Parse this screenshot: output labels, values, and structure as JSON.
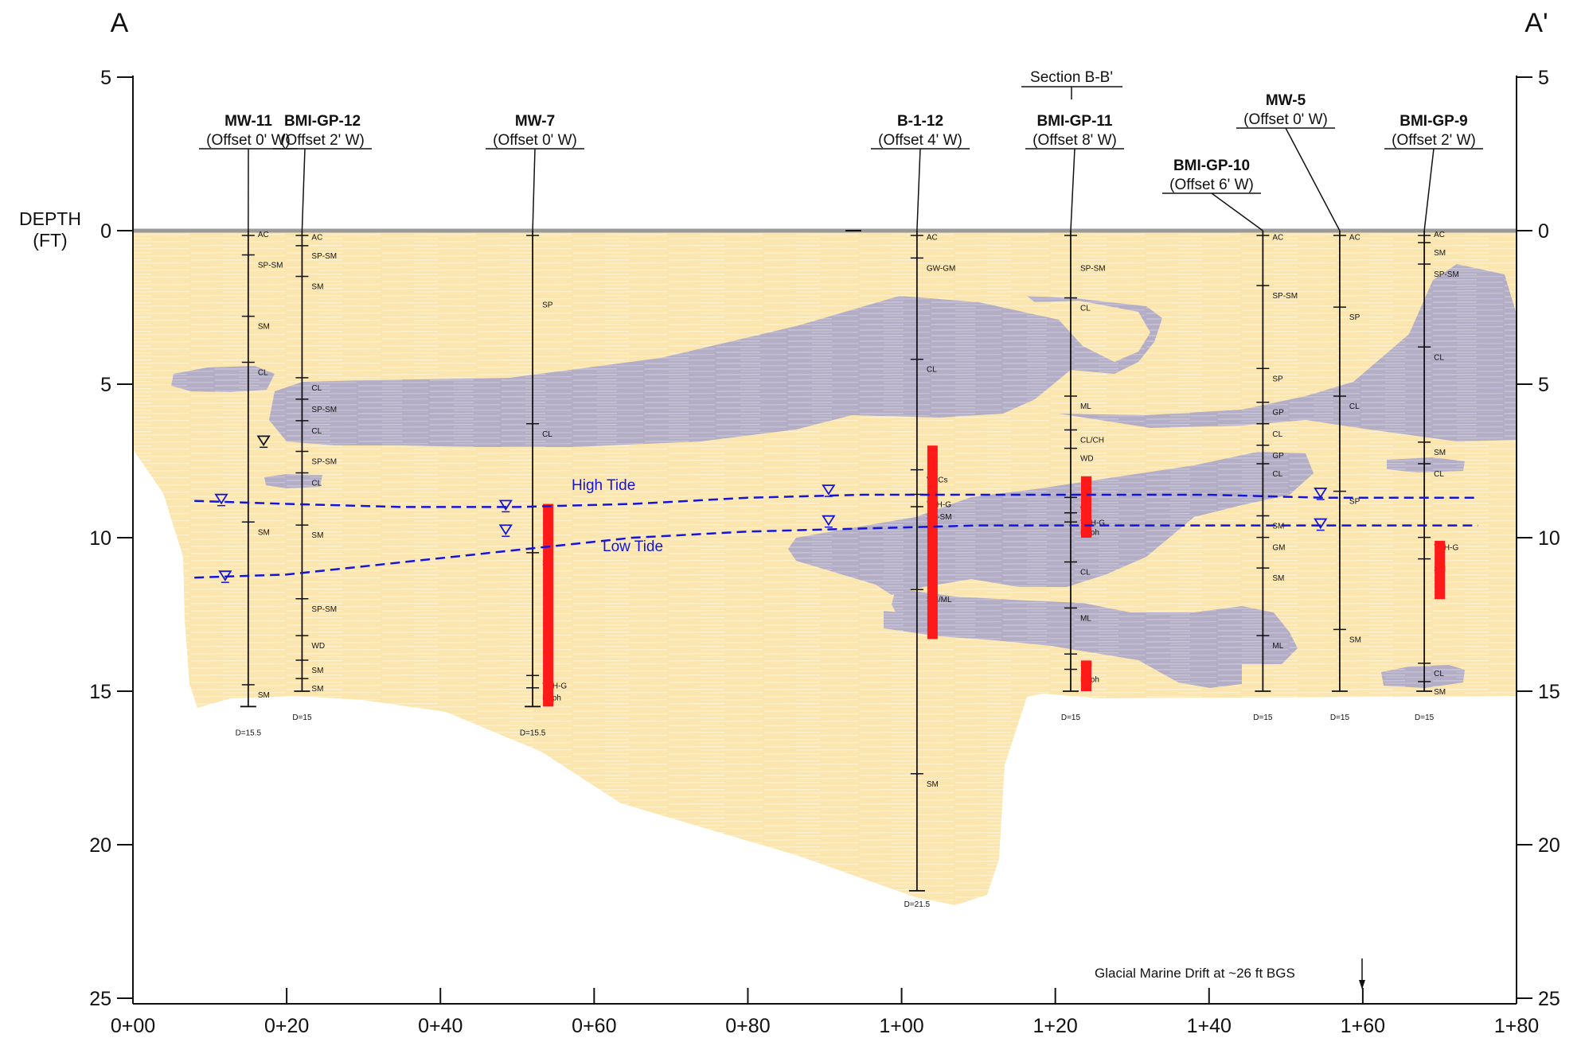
{
  "section": {
    "start_label": "A",
    "end_label": "A'",
    "depth_label_line1": "DEPTH",
    "depth_label_line2": "(FT)",
    "section_ref": "Section B-B'",
    "note": "Glacial Marine Drift at ~26 ft BGS",
    "colors": {
      "sand": "#fbe6b0",
      "clay": "#b3aec6",
      "contaminant": "#ff1a1a",
      "water_table": "#1515d8",
      "ground_surface": "#9a9a9a"
    }
  },
  "axes": {
    "depth_ticks": [
      "5",
      "0",
      "5",
      "10",
      "15",
      "20",
      "25"
    ],
    "depth_values": [
      -5,
      0,
      5,
      10,
      15,
      20,
      25
    ],
    "station_ticks": [
      "0+00",
      "0+20",
      "0+40",
      "0+60",
      "0+80",
      "1+00",
      "1+20",
      "1+40",
      "1+60",
      "1+80"
    ],
    "station_values": [
      0,
      20,
      40,
      60,
      80,
      100,
      120,
      140,
      160,
      180
    ]
  },
  "tides": {
    "high_label": "High Tide",
    "low_label": "Low Tide",
    "high_depth_ft": [
      8.8,
      8.9,
      9.0,
      9.0,
      8.9,
      8.7,
      8.6,
      8.6,
      8.6,
      8.6,
      8.7,
      8.7,
      8.7
    ],
    "low_depth_ft": [
      11.3,
      11.2,
      10.8,
      10.4,
      10.0,
      9.8,
      9.7,
      9.6,
      9.6,
      9.6,
      9.6,
      9.6,
      9.6
    ]
  },
  "borings": [
    {
      "name": "MW-11",
      "offset": "(Offset 0' W)",
      "station": 15,
      "total_depth": "D=15.5",
      "depth_ft": 15.5,
      "soils": [
        {
          "label": "AC",
          "depth": 0.1
        },
        {
          "label": "SP-SM",
          "depth": 1.1
        },
        {
          "label": "SM",
          "depth": 3.1
        },
        {
          "label": "CL",
          "depth": 4.6
        },
        {
          "label": "SM",
          "depth": 9.8
        },
        {
          "label": "SM",
          "depth": 15.1
        }
      ]
    },
    {
      "name": "BMI-GP-12",
      "offset": "(Offset 2' W)",
      "station": 22,
      "total_depth": "D=15",
      "depth_ft": 15,
      "soils": [
        {
          "label": "AC",
          "depth": 0.2
        },
        {
          "label": "SP-SM",
          "depth": 0.8
        },
        {
          "label": "SM",
          "depth": 1.8
        },
        {
          "label": "CL",
          "depth": 5.1
        },
        {
          "label": "SP-SM",
          "depth": 5.8
        },
        {
          "label": "CL",
          "depth": 6.5
        },
        {
          "label": "SP-SM",
          "depth": 7.5
        },
        {
          "label": "CL",
          "depth": 8.2
        },
        {
          "label": "SM",
          "depth": 9.9
        },
        {
          "label": "SP-SM",
          "depth": 12.3
        },
        {
          "label": "WD",
          "depth": 13.5
        },
        {
          "label": "SM",
          "depth": 14.3
        },
        {
          "label": "SM",
          "depth": 14.9
        }
      ]
    },
    {
      "name": "MW-7",
      "offset": "(Offset 0' W)",
      "station": 52,
      "total_depth": "D=15.5",
      "depth_ft": 15.5,
      "soils": [
        {
          "label": "SP",
          "depth": 2.4
        },
        {
          "label": "CL",
          "depth": 6.6
        },
        {
          "label": "SP",
          "depth": 10.8
        },
        {
          "label": "TPH-G",
          "depth": 14.8
        },
        {
          "label": "Naph",
          "depth": 15.2
        }
      ]
    },
    {
      "name": "B-1-12",
      "offset": "(Offset 4' W)",
      "station": 102,
      "total_depth": "D=21.5",
      "depth_ft": 21.5,
      "soils": [
        {
          "label": "AC",
          "depth": 0.2
        },
        {
          "label": "GW-GM",
          "depth": 1.2
        },
        {
          "label": "CL",
          "depth": 4.5
        },
        {
          "label": "VOCs",
          "depth": 8.1
        },
        {
          "label": "TPH-G",
          "depth": 8.9
        },
        {
          "label": "SP-SM",
          "depth": 9.3
        },
        {
          "label": "SM/ML",
          "depth": 12.0
        },
        {
          "label": "SM",
          "depth": 18.0
        }
      ]
    },
    {
      "name": "BMI-GP-11",
      "offset": "(Offset 8' W)",
      "station": 122,
      "total_depth": "D=15",
      "depth_ft": 15,
      "soils": [
        {
          "label": "SP-SM",
          "depth": 1.2
        },
        {
          "label": "CL",
          "depth": 2.5
        },
        {
          "label": "ML",
          "depth": 5.7
        },
        {
          "label": "CL/CH",
          "depth": 6.8
        },
        {
          "label": "WD",
          "depth": 7.4
        },
        {
          "label": "CL",
          "depth": 9.0
        },
        {
          "label": "TPH-G",
          "depth": 9.5
        },
        {
          "label": "Naph",
          "depth": 9.8
        },
        {
          "label": "CL",
          "depth": 11.1
        },
        {
          "label": "ML",
          "depth": 12.6
        },
        {
          "label": "SM",
          "depth": 14.1
        },
        {
          "label": "Naph",
          "depth": 14.6
        }
      ]
    },
    {
      "name": "BMI-GP-10",
      "offset": "(Offset 6' W)",
      "station": 147,
      "total_depth": "D=15",
      "depth_ft": 15,
      "soils": [
        {
          "label": "AC",
          "depth": 0.2
        },
        {
          "label": "SP-SM",
          "depth": 2.1
        },
        {
          "label": "SP",
          "depth": 4.8
        },
        {
          "label": "GP",
          "depth": 5.9
        },
        {
          "label": "CL",
          "depth": 6.6
        },
        {
          "label": "GP",
          "depth": 7.3
        },
        {
          "label": "CL",
          "depth": 7.9
        },
        {
          "label": "SM",
          "depth": 9.6
        },
        {
          "label": "GM",
          "depth": 10.3
        },
        {
          "label": "SM",
          "depth": 11.3
        },
        {
          "label": "ML",
          "depth": 13.5
        }
      ]
    },
    {
      "name": "MW-5",
      "offset": "(Offset 0' W)",
      "station": 157,
      "total_depth": "D=15",
      "depth_ft": 15,
      "soils": [
        {
          "label": "AC",
          "depth": 0.2
        },
        {
          "label": "SP",
          "depth": 2.8
        },
        {
          "label": "CL",
          "depth": 5.7
        },
        {
          "label": "SP",
          "depth": 8.8
        },
        {
          "label": "SM",
          "depth": 13.3
        }
      ]
    },
    {
      "name": "BMI-GP-9",
      "offset": "(Offset 2' W)",
      "station": 168,
      "total_depth": "D=15",
      "depth_ft": 15,
      "soils": [
        {
          "label": "AC",
          "depth": 0.1
        },
        {
          "label": "SM",
          "depth": 0.7
        },
        {
          "label": "SP-SM",
          "depth": 1.4
        },
        {
          "label": "CL",
          "depth": 4.1
        },
        {
          "label": "SM",
          "depth": 7.2
        },
        {
          "label": "CL",
          "depth": 7.9
        },
        {
          "label": "TPH-G",
          "depth": 10.3
        },
        {
          "label": "SM",
          "depth": 11.0
        },
        {
          "label": "CL",
          "depth": 14.4
        },
        {
          "label": "SM",
          "depth": 15.0
        }
      ]
    }
  ],
  "contamination_intervals_ft": [
    {
      "boring": "MW-7",
      "top": 8.9,
      "bottom": 15.5
    },
    {
      "boring": "B-1-12",
      "top": 7.0,
      "bottom": 13.3
    },
    {
      "boring": "BMI-GP-11",
      "top": 8.0,
      "bottom": 10.0
    },
    {
      "boring": "BMI-GP-11",
      "top": 14.0,
      "bottom": 15.0
    },
    {
      "boring": "BMI-GP-9",
      "top": 10.1,
      "bottom": 12.0
    }
  ]
}
